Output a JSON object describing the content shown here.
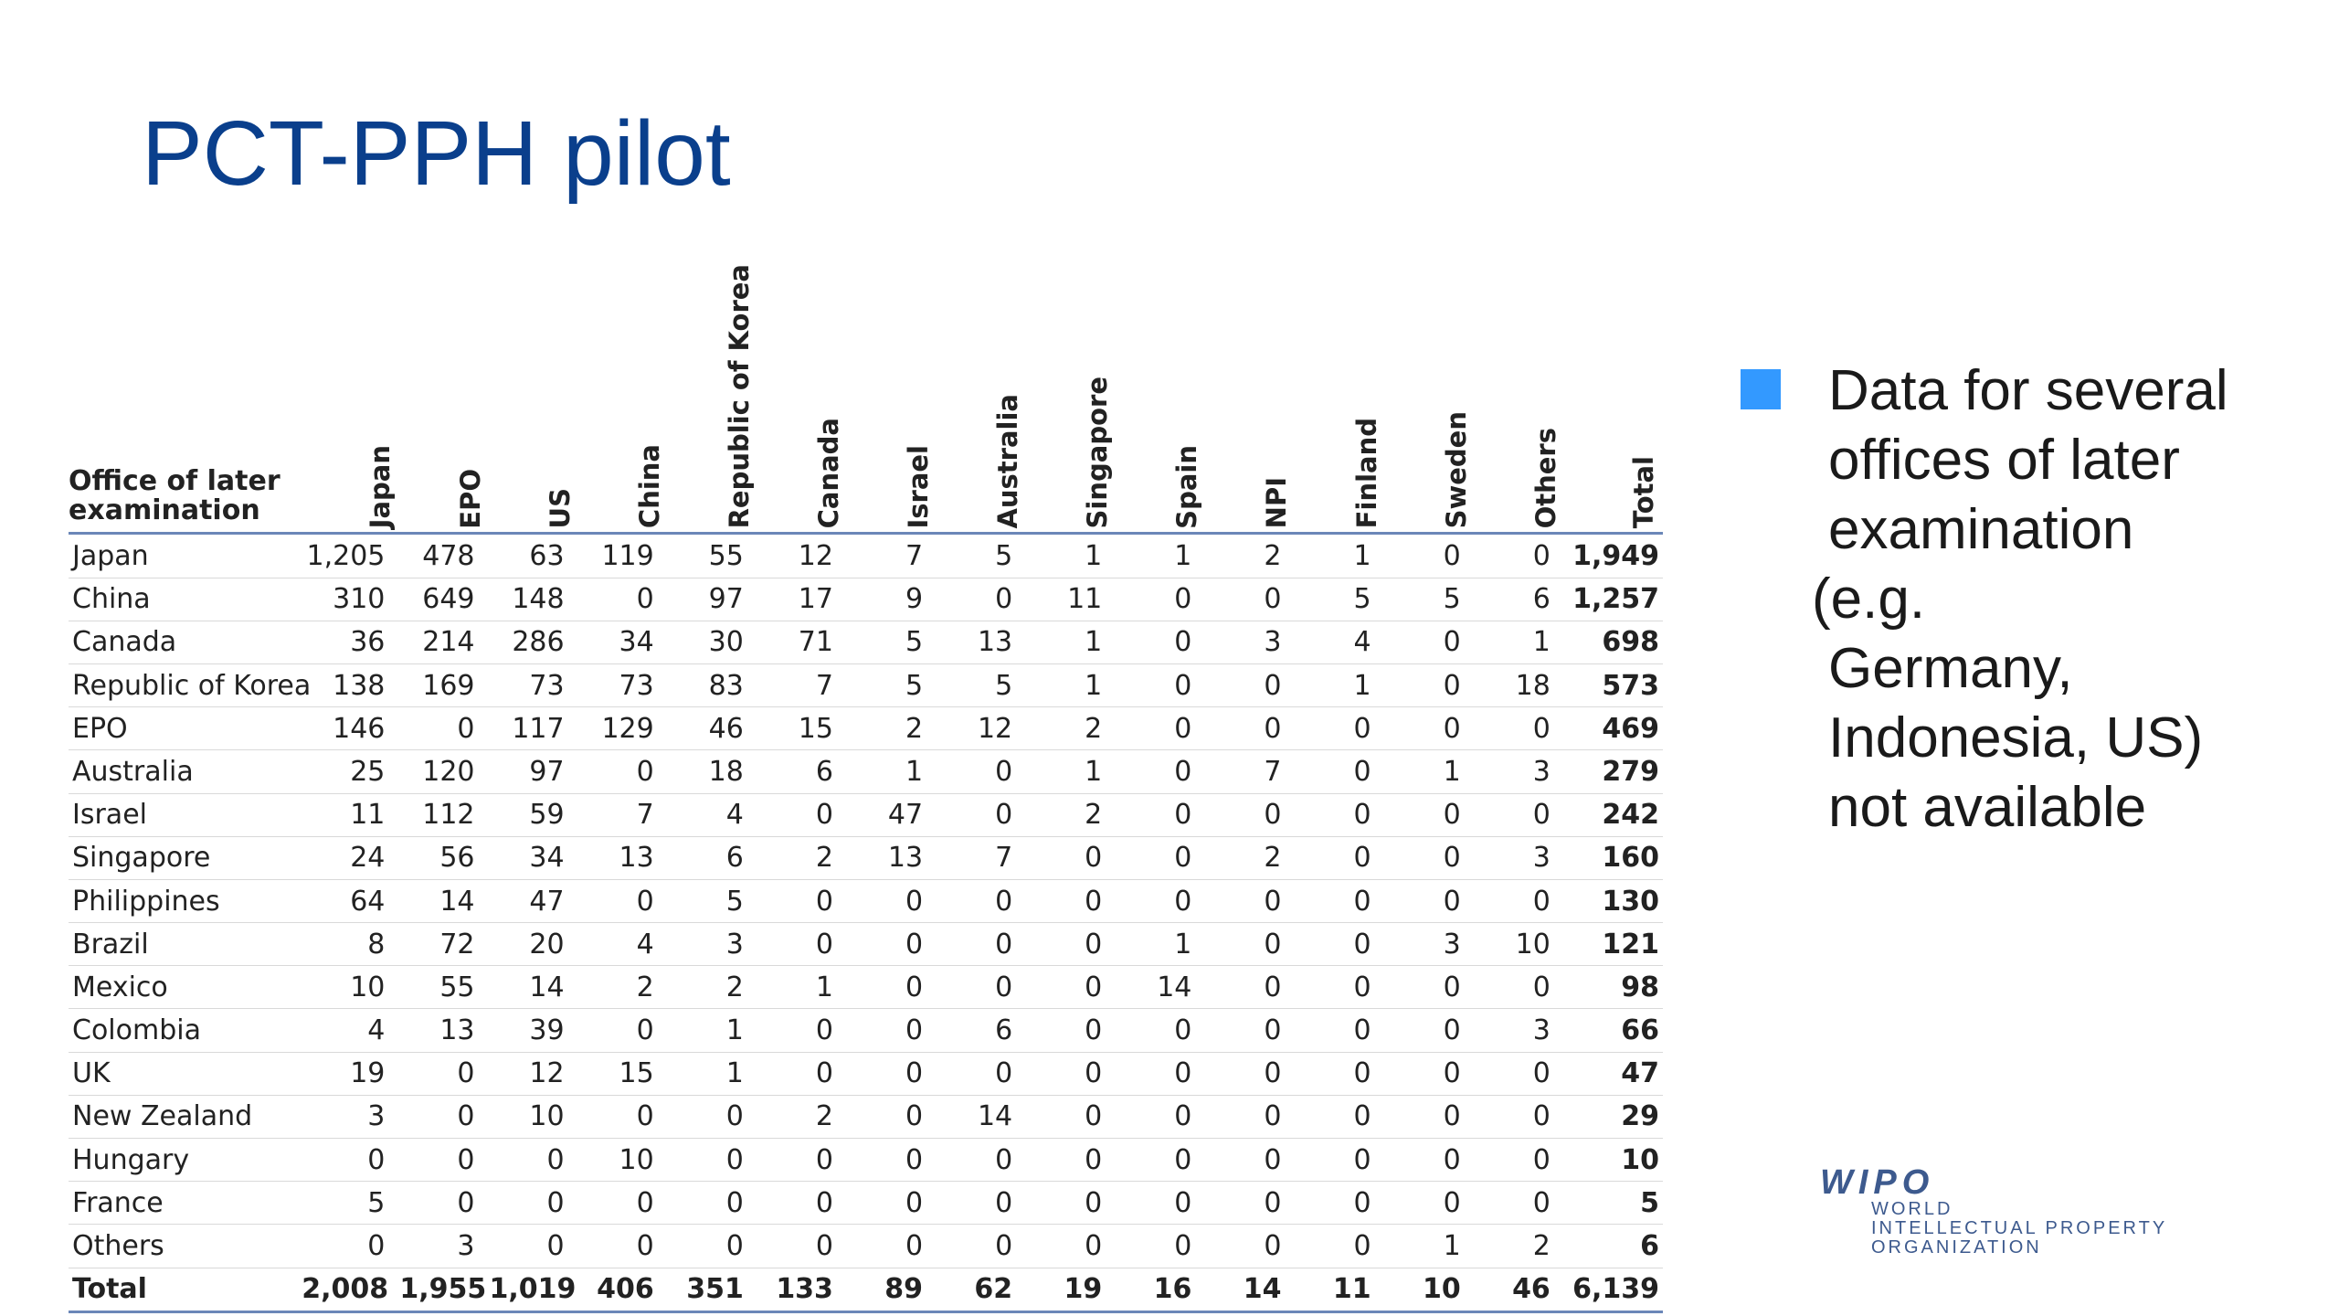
{
  "title": "PCT-PPH pilot",
  "table": {
    "row_header_label": "Office of later examination",
    "columns": [
      "Japan",
      "EPO",
      "US",
      "China",
      "Republic of Korea",
      "Canada",
      "Israel",
      "Australia",
      "Singapore",
      "Spain",
      "NPI",
      "Finland",
      "Sweden",
      "Others",
      "Total"
    ],
    "rows": [
      {
        "name": "Japan",
        "values": [
          "1,205",
          "478",
          "63",
          "119",
          "55",
          "12",
          "7",
          "5",
          "1",
          "1",
          "2",
          "1",
          "0",
          "0"
        ],
        "total": "1,949"
      },
      {
        "name": "China",
        "values": [
          "310",
          "649",
          "148",
          "0",
          "97",
          "17",
          "9",
          "0",
          "11",
          "0",
          "0",
          "5",
          "5",
          "6"
        ],
        "total": "1,257"
      },
      {
        "name": "Canada",
        "values": [
          "36",
          "214",
          "286",
          "34",
          "30",
          "71",
          "5",
          "13",
          "1",
          "0",
          "3",
          "4",
          "0",
          "1"
        ],
        "total": "698"
      },
      {
        "name": "Republic of Korea",
        "values": [
          "138",
          "169",
          "73",
          "73",
          "83",
          "7",
          "5",
          "5",
          "1",
          "0",
          "0",
          "1",
          "0",
          "18"
        ],
        "total": "573"
      },
      {
        "name": "EPO",
        "values": [
          "146",
          "0",
          "117",
          "129",
          "46",
          "15",
          "2",
          "12",
          "2",
          "0",
          "0",
          "0",
          "0",
          "0"
        ],
        "total": "469"
      },
      {
        "name": "Australia",
        "values": [
          "25",
          "120",
          "97",
          "0",
          "18",
          "6",
          "1",
          "0",
          "1",
          "0",
          "7",
          "0",
          "1",
          "3"
        ],
        "total": "279"
      },
      {
        "name": "Israel",
        "values": [
          "11",
          "112",
          "59",
          "7",
          "4",
          "0",
          "47",
          "0",
          "2",
          "0",
          "0",
          "0",
          "0",
          "0"
        ],
        "total": "242"
      },
      {
        "name": "Singapore",
        "values": [
          "24",
          "56",
          "34",
          "13",
          "6",
          "2",
          "13",
          "7",
          "0",
          "0",
          "2",
          "0",
          "0",
          "3"
        ],
        "total": "160"
      },
      {
        "name": "Philippines",
        "values": [
          "64",
          "14",
          "47",
          "0",
          "5",
          "0",
          "0",
          "0",
          "0",
          "0",
          "0",
          "0",
          "0",
          "0"
        ],
        "total": "130"
      },
      {
        "name": "Brazil",
        "values": [
          "8",
          "72",
          "20",
          "4",
          "3",
          "0",
          "0",
          "0",
          "0",
          "1",
          "0",
          "0",
          "3",
          "10"
        ],
        "total": "121"
      },
      {
        "name": "Mexico",
        "values": [
          "10",
          "55",
          "14",
          "2",
          "2",
          "1",
          "0",
          "0",
          "0",
          "14",
          "0",
          "0",
          "0",
          "0"
        ],
        "total": "98"
      },
      {
        "name": "Colombia",
        "values": [
          "4",
          "13",
          "39",
          "0",
          "1",
          "0",
          "0",
          "6",
          "0",
          "0",
          "0",
          "0",
          "0",
          "3"
        ],
        "total": "66"
      },
      {
        "name": "UK",
        "values": [
          "19",
          "0",
          "12",
          "15",
          "1",
          "0",
          "0",
          "0",
          "0",
          "0",
          "0",
          "0",
          "0",
          "0"
        ],
        "total": "47"
      },
      {
        "name": "New Zealand",
        "values": [
          "3",
          "0",
          "10",
          "0",
          "0",
          "2",
          "0",
          "14",
          "0",
          "0",
          "0",
          "0",
          "0",
          "0"
        ],
        "total": "29"
      },
      {
        "name": "Hungary",
        "values": [
          "0",
          "0",
          "0",
          "10",
          "0",
          "0",
          "0",
          "0",
          "0",
          "0",
          "0",
          "0",
          "0",
          "0"
        ],
        "total": "10"
      },
      {
        "name": "France",
        "values": [
          "5",
          "0",
          "0",
          "0",
          "0",
          "0",
          "0",
          "0",
          "0",
          "0",
          "0",
          "0",
          "0",
          "0"
        ],
        "total": "5"
      },
      {
        "name": "Others",
        "values": [
          "0",
          "3",
          "0",
          "0",
          "0",
          "0",
          "0",
          "0",
          "0",
          "0",
          "0",
          "0",
          "1",
          "2"
        ],
        "total": "6"
      }
    ],
    "total_row": {
      "name": "Total",
      "values": [
        "2,008",
        "1,955",
        "1,019",
        "406",
        "351",
        "133",
        "89",
        "62",
        "19",
        "16",
        "14",
        "11",
        "10",
        "46"
      ],
      "total": "6,139"
    }
  },
  "note": {
    "lines": [
      "Data for several",
      "offices of later",
      "examination (e.g.",
      "Germany,",
      "Indonesia, US)",
      "not available"
    ]
  },
  "logo": {
    "main": "WIPO",
    "line1": "WORLD",
    "line2": "INTELLECTUAL PROPERTY",
    "line3": "ORGANIZATION"
  },
  "colors": {
    "title": "#0a3f8c",
    "bullet": "#3399ff",
    "rule": "#6b87b8",
    "logo": "#3d5a8e"
  }
}
